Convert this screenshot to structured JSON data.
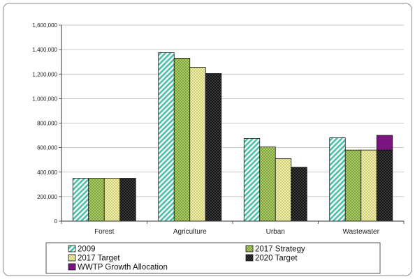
{
  "chart_data": {
    "type": "bar",
    "title": "",
    "xlabel": "",
    "ylabel": "",
    "ylim": [
      0,
      1600000
    ],
    "yticks": [
      "0",
      "200,000",
      "400,000",
      "600,000",
      "800,000",
      "1,000,000",
      "1,200,000",
      "1,400,000",
      "1,600,000"
    ],
    "grid": true,
    "legend_position": "bottom",
    "categories": [
      "Forest",
      "Agriculture",
      "Urban",
      "Wastewater"
    ],
    "series": [
      {
        "name": "2009",
        "values": [
          350000,
          1375000,
          675000,
          680000
        ],
        "color": "#4bbfa8",
        "pattern": "diagonal-stripes"
      },
      {
        "name": "2017 Strategy",
        "values": [
          350000,
          1330000,
          605000,
          580000
        ],
        "color": "#6f9a2a",
        "pattern": "crosshatch"
      },
      {
        "name": "2017 Target",
        "values": [
          350000,
          1255000,
          510000,
          580000
        ],
        "color": "#f0f0a0",
        "pattern": "crosshatch"
      },
      {
        "name": "2020 Target",
        "values": [
          350000,
          1205000,
          440000,
          580000
        ],
        "color": "#111111",
        "pattern": "crosshatch"
      },
      {
        "name": "WWTP Growth Allocation",
        "values": [
          0,
          0,
          0,
          120000
        ],
        "color": "#7a1580",
        "pattern": "solid",
        "stacked_on": "2020 Target"
      }
    ]
  },
  "legend": {
    "items": [
      "2009",
      "2017 Strategy",
      "2017 Target",
      "2020 Target",
      "WWTP Growth Allocation"
    ]
  }
}
